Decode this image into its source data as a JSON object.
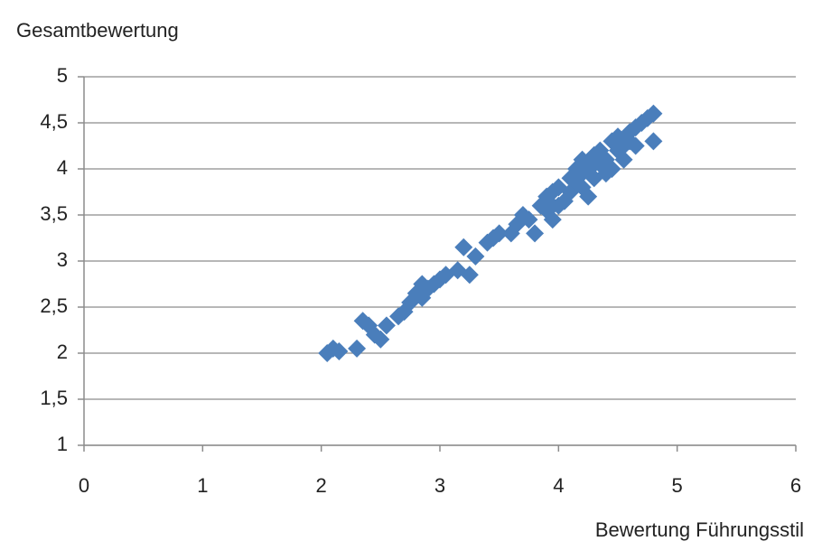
{
  "chart_data": {
    "type": "scatter",
    "ylabel": "Gesamtbewertung",
    "xlabel": "Bewertung Führungsstil",
    "color": "#4a7ebb",
    "x": [
      2.05,
      2.1,
      2.15,
      2.3,
      2.35,
      2.4,
      2.45,
      2.5,
      2.55,
      2.65,
      2.7,
      2.75,
      2.8,
      2.85,
      2.9,
      2.85,
      2.95,
      3.0,
      3.05,
      3.15,
      3.2,
      3.25,
      3.3,
      3.4,
      3.45,
      3.5,
      3.6,
      3.65,
      3.7,
      3.75,
      3.8,
      3.85,
      3.9,
      3.9,
      3.95,
      3.95,
      4.0,
      4.0,
      4.05,
      4.1,
      4.1,
      4.15,
      4.2,
      4.2,
      4.25,
      4.25,
      4.3,
      4.3,
      4.35,
      4.35,
      4.4,
      4.4,
      4.45,
      4.45,
      4.5,
      4.5,
      4.55,
      4.55,
      4.6,
      4.6,
      4.65,
      4.7,
      4.75,
      4.8,
      4.8,
      4.65,
      4.3,
      4.2,
      4.15,
      3.95
    ],
    "y": [
      2.0,
      2.05,
      2.02,
      2.05,
      2.35,
      2.3,
      2.2,
      2.15,
      2.3,
      2.4,
      2.45,
      2.55,
      2.65,
      2.6,
      2.7,
      2.75,
      2.75,
      2.8,
      2.85,
      2.9,
      3.15,
      2.85,
      3.05,
      3.2,
      3.25,
      3.3,
      3.3,
      3.4,
      3.5,
      3.45,
      3.3,
      3.6,
      3.55,
      3.7,
      3.75,
      3.45,
      3.8,
      3.6,
      3.65,
      3.75,
      3.9,
      3.85,
      4.1,
      3.95,
      4.0,
      3.7,
      4.15,
      3.9,
      4.05,
      4.2,
      4.1,
      3.95,
      4.3,
      4.0,
      4.2,
      4.35,
      4.1,
      4.25,
      4.3,
      4.4,
      4.25,
      4.5,
      4.55,
      4.6,
      4.3,
      4.45,
      4.05,
      3.8,
      4.0,
      3.6
    ],
    "xlim": [
      0,
      6
    ],
    "xticks": [
      0,
      1,
      2,
      3,
      4,
      5,
      6
    ],
    "ylim": [
      1,
      5
    ],
    "yticks": [
      1,
      {
        "value": 1.5,
        "label": "1,5"
      },
      2,
      {
        "value": 2.5,
        "label": "2,5"
      },
      3,
      {
        "value": 3.5,
        "label": "3,5"
      },
      4,
      {
        "value": 4.5,
        "label": "4,5"
      },
      5
    ],
    "grid": true
  }
}
